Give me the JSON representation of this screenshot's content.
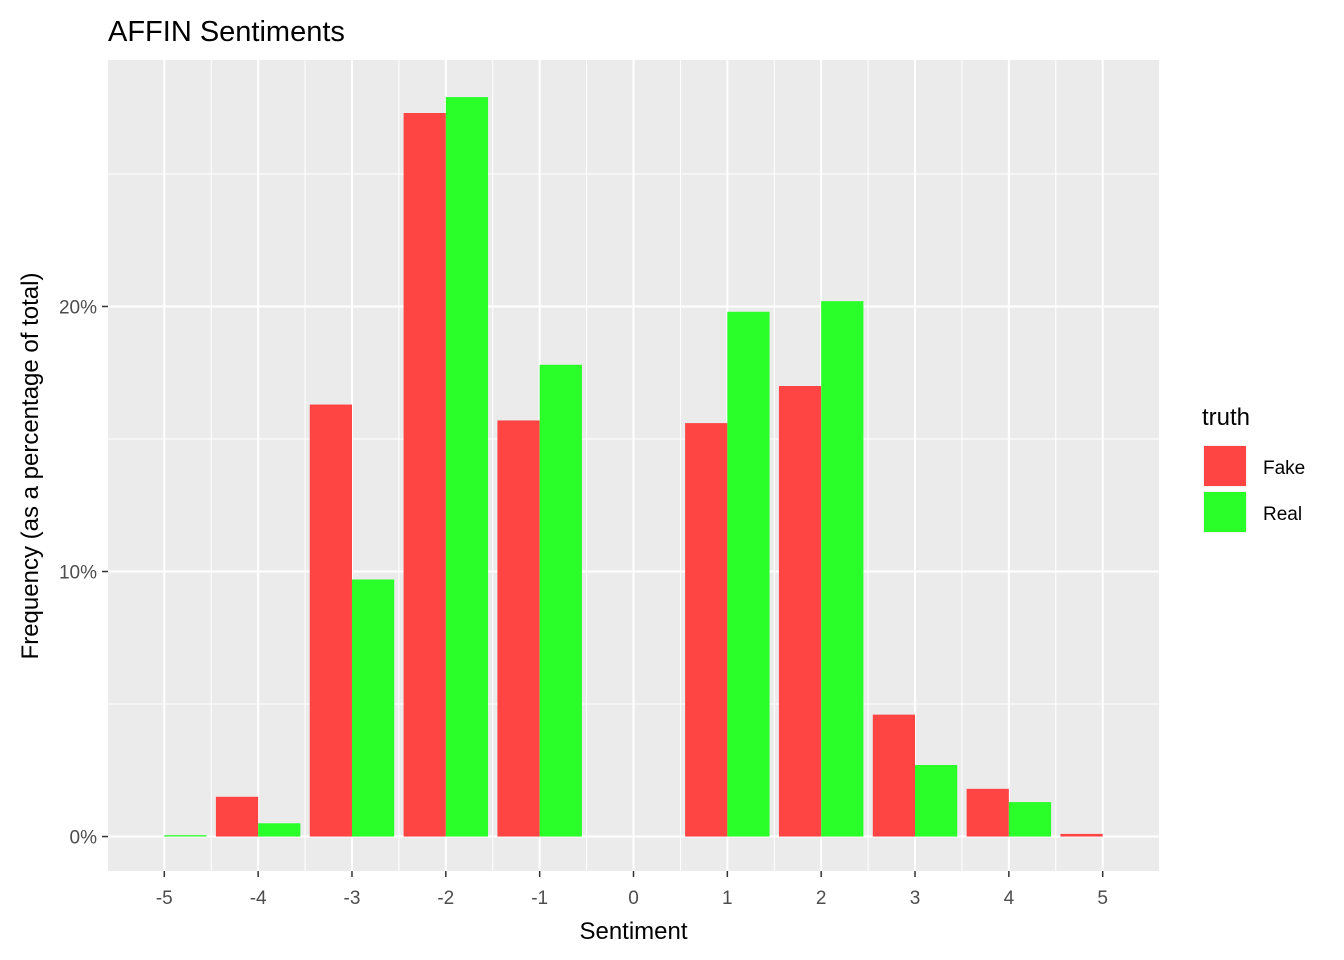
{
  "chart_data": {
    "type": "bar",
    "title": "AFFIN Sentiments",
    "xlabel": "Sentiment",
    "ylabel": "Frequency (as a percentage of total)",
    "categories": [
      "-5",
      "-4",
      "-3",
      "-2",
      "-1",
      "0",
      "1",
      "2",
      "3",
      "4",
      "5"
    ],
    "series": [
      {
        "name": "Fake",
        "color": "#ff4444",
        "values": [
          0.0,
          1.5,
          16.3,
          27.3,
          15.7,
          0.0,
          15.6,
          17.0,
          4.6,
          1.8,
          0.1
        ]
      },
      {
        "name": "Real",
        "color": "#2aff2a",
        "values": [
          0.05,
          0.5,
          9.7,
          27.9,
          17.8,
          0.0,
          19.8,
          20.2,
          2.7,
          1.3,
          0.0
        ]
      }
    ],
    "yticks": [
      0,
      10,
      20
    ],
    "ytick_labels": [
      "0%",
      "10%",
      "20%"
    ],
    "ylim": [
      -1.3,
      29.3
    ],
    "grid": true,
    "panel_background": "#ebebeb",
    "legend": {
      "title": "truth",
      "position": "right"
    }
  }
}
